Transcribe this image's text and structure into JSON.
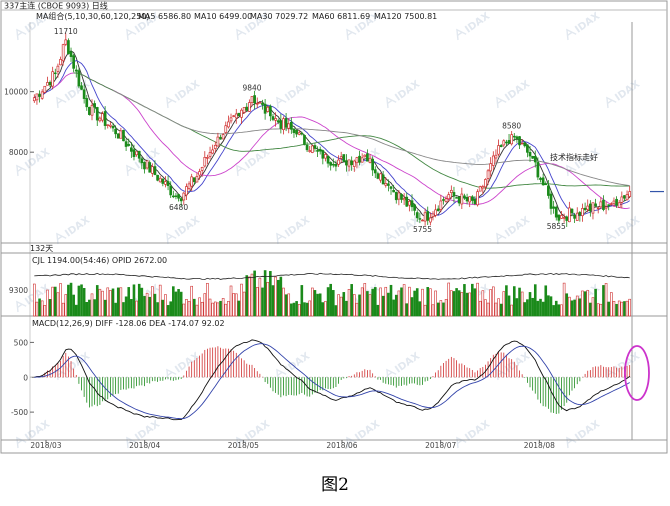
{
  "caption": "图2",
  "chart_data": {
    "type": "candlestick",
    "instrument": {
      "title": "337主连 (CBOE 9093) 日线",
      "ma_header": "MA组合(5,10,30,60,120,250)",
      "ma_values": [
        {
          "label": "MA5 6586.80",
          "color": "#333333"
        },
        {
          "label": "MA10 6499.00",
          "color": "#4444cc"
        },
        {
          "label": "MA30 7029.72",
          "color": "#cc44cc"
        },
        {
          "label": "MA60 6811.69",
          "color": "#448844"
        },
        {
          "label": "MA120 7500.81",
          "color": "#888888"
        }
      ]
    },
    "annotation": {
      "text": "技术指标走好",
      "color": "#cc33cc"
    },
    "price_axis": {
      "ticks": [
        10000,
        8000
      ],
      "ylim": [
        5100,
        12300
      ]
    },
    "key_prices": [
      {
        "label": "11710",
        "value": 11710,
        "date_index": 12
      },
      {
        "label": "6480",
        "value": 6480,
        "date_index": 55
      },
      {
        "label": "9840",
        "value": 9840,
        "date_index": 83
      },
      {
        "label": "5755",
        "value": 5755,
        "date_index": 148
      },
      {
        "label": "8580",
        "value": 8580,
        "date_index": 182
      },
      {
        "label": "5855",
        "value": 5855,
        "date_index": 199
      }
    ],
    "last_price": 6700,
    "bars_count": 228,
    "period_label": "132天",
    "volume_panel": {
      "header": "CJL 1194.00(54:46) OPID 2672.00",
      "ticks": [
        9300
      ],
      "up_color": "#d03030",
      "down_color": "#1a8a1a"
    },
    "macd_panel": {
      "header": "MACD(12,26,9) DIFF -128.06 DEA -174.07 92.02",
      "ticks": [
        500,
        0,
        -500
      ],
      "ylim": [
        -900,
        850
      ]
    },
    "x_axis": {
      "labels": [
        "2018/03",
        "2018/04",
        "2018/05",
        "2018/06",
        "2018/07",
        "2018/08"
      ]
    },
    "highlight_ellipse": {
      "color": "#cc33cc"
    },
    "watermark": "IDAX"
  }
}
